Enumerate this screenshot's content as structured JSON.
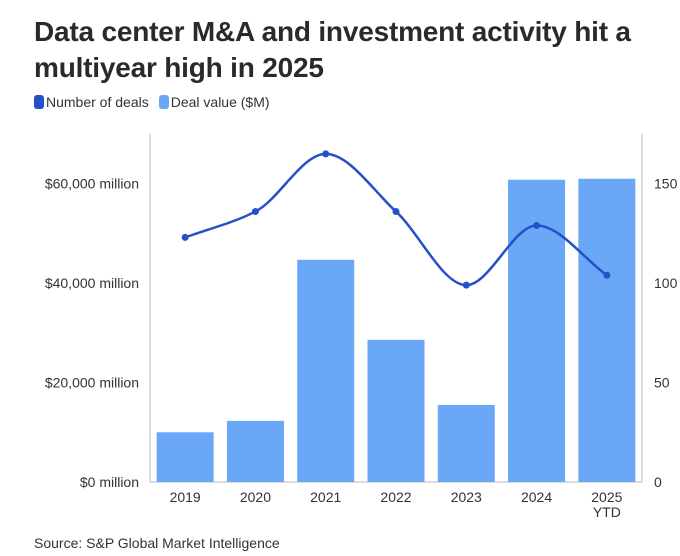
{
  "title": "Data center M&A and investment activity hit a multiyear high in 2025",
  "legend": {
    "deals_label": "Number of deals",
    "value_label": "Deal value ($M)"
  },
  "source": "Source: S&P Global Market Intelligence",
  "colors": {
    "bars": "#6aa8f7",
    "line": "#2451c7",
    "axis": "#bbbbbb"
  },
  "chart_data": {
    "type": "bar",
    "categories": [
      "2019",
      "2020",
      "2021",
      "2022",
      "2023",
      "2024",
      "2025 YTD"
    ],
    "category_labels": [
      [
        "2019"
      ],
      [
        "2020"
      ],
      [
        "2021"
      ],
      [
        "2022"
      ],
      [
        "2023"
      ],
      [
        "2024"
      ],
      [
        "2025",
        "YTD"
      ]
    ],
    "series": [
      {
        "name": "Deal value ($M)",
        "type": "bar",
        "axis": "left",
        "values": [
          10000,
          12300,
          44700,
          28600,
          15500,
          60800,
          61000
        ]
      },
      {
        "name": "Number of deals",
        "type": "line",
        "axis": "right",
        "values": [
          123,
          136,
          165,
          136,
          99,
          129,
          104
        ]
      }
    ],
    "y_left": {
      "lim": [
        0,
        70000
      ],
      "ticks": [
        0,
        20000,
        40000,
        60000
      ],
      "tick_labels": [
        "$0 million",
        "$20,000 million",
        "$40,000 million",
        "$60,000 million"
      ]
    },
    "y_right": {
      "lim": [
        0,
        175
      ],
      "ticks": [
        0,
        50,
        100,
        150
      ],
      "tick_labels": [
        "0",
        "50",
        "100",
        "150"
      ]
    },
    "grid": false,
    "legend_position": "top-left"
  }
}
